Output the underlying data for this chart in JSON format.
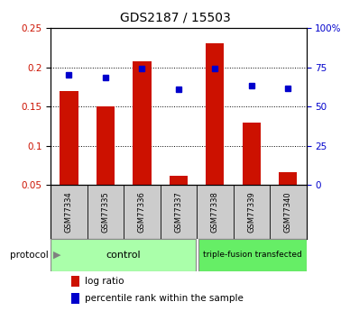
{
  "title": "GDS2187 / 15503",
  "samples": [
    "GSM77334",
    "GSM77335",
    "GSM77336",
    "GSM77337",
    "GSM77338",
    "GSM77339",
    "GSM77340"
  ],
  "log_ratio": [
    0.17,
    0.15,
    0.208,
    0.062,
    0.23,
    0.13,
    0.067
  ],
  "percentile_rank": [
    70.0,
    68.5,
    74.5,
    61.0,
    74.5,
    63.5,
    61.5
  ],
  "bar_color": "#cc1100",
  "dot_color": "#0000cc",
  "ylim_left": [
    0.05,
    0.25
  ],
  "ylim_right": [
    0,
    100
  ],
  "yticks_left": [
    0.05,
    0.1,
    0.15,
    0.2,
    0.25
  ],
  "ytick_labels_left": [
    "0.05",
    "0.1",
    "0.15",
    "0.2",
    "0.25"
  ],
  "yticks_right": [
    0,
    25,
    50,
    75,
    100
  ],
  "ytick_labels_right": [
    "0",
    "25",
    "50",
    "75",
    "100%"
  ],
  "grid_yticks": [
    0.1,
    0.15,
    0.2
  ],
  "control_count": 4,
  "control_label": "control",
  "treatment_label": "triple-fusion transfected",
  "protocol_label": "protocol",
  "legend_bar_label": "log ratio",
  "legend_dot_label": "percentile rank within the sample",
  "control_bg": "#aaffaa",
  "treatment_bg": "#66ee66",
  "sample_bg": "#cccccc",
  "bar_width": 0.5
}
